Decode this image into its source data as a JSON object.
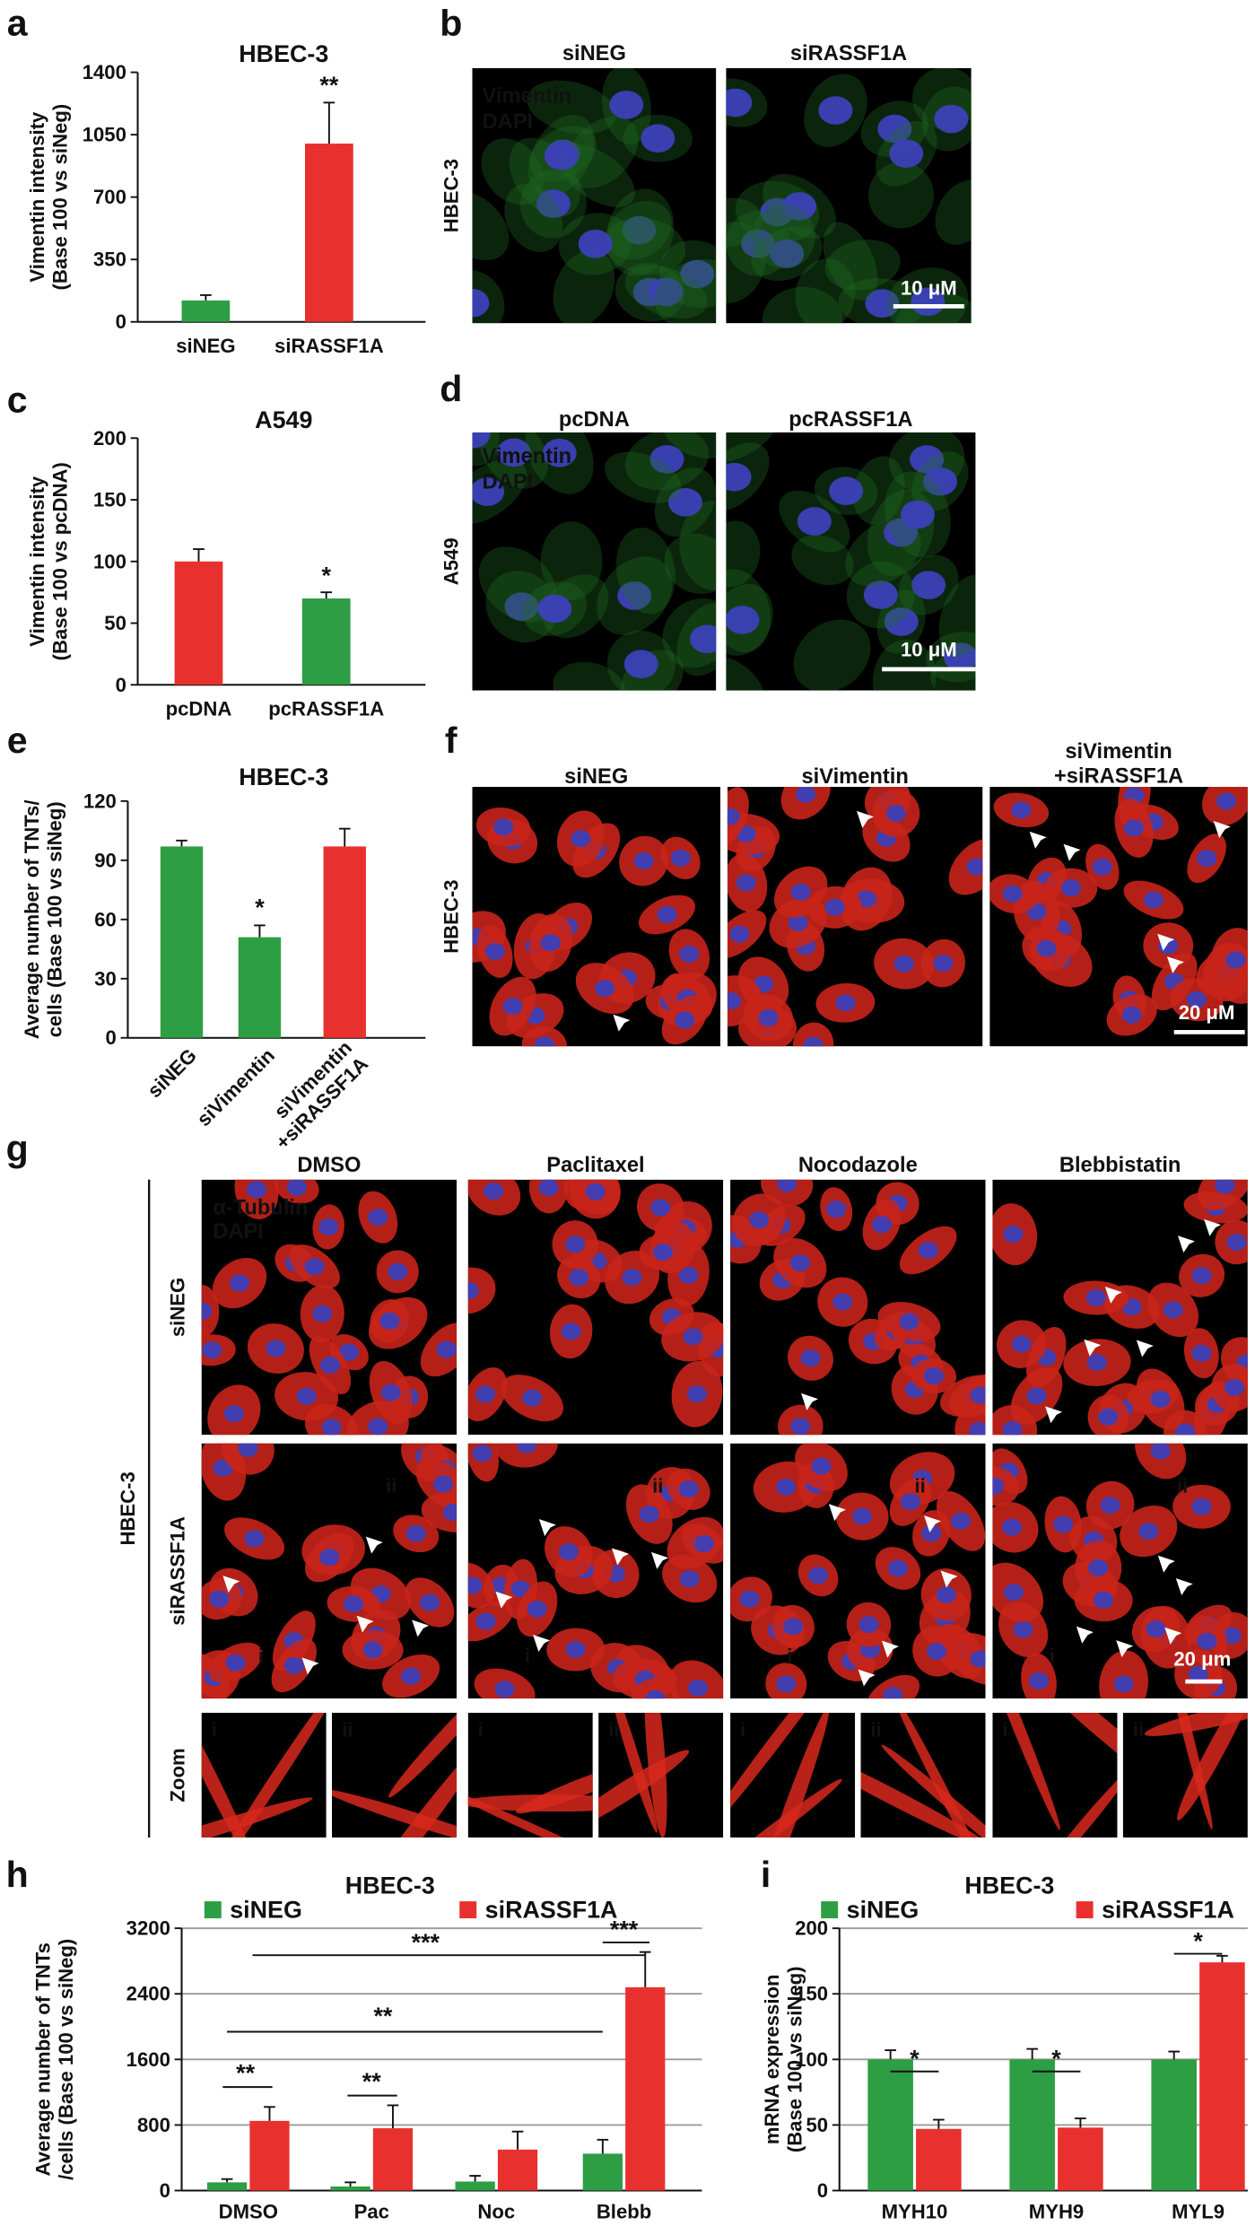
{
  "chart_data": [
    {
      "panel_label": "a",
      "type": "bar",
      "title": "HBEC-3",
      "ylabel": "Vimentin intensity\n(Base 100 vs siNeg)",
      "categories": [
        "siNEG",
        "siRASSF1A"
      ],
      "values": [
        120,
        1000
      ],
      "errors": [
        30,
        230
      ],
      "colors": [
        "#2e9e44",
        "#e8312f"
      ],
      "ylim": [
        0,
        1400
      ],
      "yticks": [
        0,
        350,
        700,
        1050,
        1400
      ],
      "annotations": [
        "**"
      ]
    },
    {
      "panel_label": "c",
      "type": "bar",
      "title": "A549",
      "ylabel": "Vimentin intensity\n(Base 100 vs pcDNA)",
      "categories": [
        "pcDNA",
        "pcRASSF1A"
      ],
      "values": [
        100,
        70
      ],
      "errors": [
        10,
        5
      ],
      "colors": [
        "#e8312f",
        "#2e9e44"
      ],
      "ylim": [
        0,
        200
      ],
      "yticks": [
        0,
        50,
        100,
        150,
        200
      ],
      "annotations": [
        "*"
      ]
    },
    {
      "panel_label": "e",
      "type": "bar",
      "title": "HBEC-3",
      "ylabel": "Average number of TNTs/\ncells (Base 100 vs siNeg)",
      "categories": [
        "siNEG",
        "siVimentin",
        "siVimentin\n+siRASSF1A"
      ],
      "values": [
        97,
        51,
        97
      ],
      "errors": [
        3,
        6,
        9
      ],
      "colors": [
        "#2e9e44",
        "#2e9e44",
        "#e8312f"
      ],
      "ylim": [
        0,
        120
      ],
      "yticks": [
        0,
        30,
        60,
        90,
        120
      ],
      "annotations": [
        "*"
      ]
    },
    {
      "panel_label": "h",
      "type": "bar",
      "title": "HBEC-3",
      "ylabel": "Average number of TNTs\n/cells (Base 100 vs siNeg)",
      "categories": [
        "DMSO",
        "Pac",
        "Noc",
        "Blebb"
      ],
      "series": [
        {
          "name": "siNEG",
          "color": "#2e9e44",
          "values": [
            100,
            50,
            110,
            450
          ],
          "errors": [
            40,
            50,
            70,
            170
          ]
        },
        {
          "name": "siRASSF1A",
          "color": "#e8312f",
          "values": [
            850,
            760,
            500,
            2480
          ],
          "errors": [
            170,
            280,
            220,
            430
          ]
        }
      ],
      "ylim": [
        0,
        3200
      ],
      "yticks": [
        0,
        800,
        1600,
        2400,
        3200
      ],
      "grid": true,
      "annotations": [
        "**",
        "**",
        "***",
        "**",
        "***"
      ]
    },
    {
      "panel_label": "i",
      "type": "bar",
      "title": "HBEC-3",
      "ylabel": "mRNA expression\n(Base 100 vs siNeg)",
      "categories": [
        "MYH10",
        "MYH9",
        "MYL9"
      ],
      "series": [
        {
          "name": "siNEG",
          "color": "#2e9e44",
          "values": [
            100,
            100,
            100
          ],
          "errors": [
            7,
            8,
            6
          ]
        },
        {
          "name": "siRASSF1A",
          "color": "#e8312f",
          "values": [
            47,
            48,
            174
          ],
          "errors": [
            7,
            7,
            5
          ]
        }
      ],
      "ylim": [
        0,
        200
      ],
      "yticks": [
        0,
        50,
        100,
        150,
        200
      ],
      "grid": true,
      "annotations": [
        "*",
        "*",
        "*"
      ]
    }
  ],
  "image_panels": [
    {
      "panel_label": "b",
      "row_label": "HBEC-3",
      "columns": [
        "siNEG",
        "siRASSF1A"
      ],
      "stains": [
        {
          "name": "Vimentin",
          "color": "#3ed23e"
        },
        {
          "name": "DAPI",
          "color": "#3f8f9f"
        }
      ],
      "scale_bar": "10 μM"
    },
    {
      "panel_label": "d",
      "row_label": "A549",
      "columns": [
        "pcDNA",
        "pcRASSF1A"
      ],
      "stains": [
        {
          "name": "Vimentin",
          "color": "#3ed23e"
        },
        {
          "name": "DAPI",
          "color": "#3f8f9f"
        }
      ],
      "scale_bar": "10 μM"
    },
    {
      "panel_label": "f",
      "row_label": "HBEC-3",
      "columns": [
        "siNEG",
        "siVimentin",
        "siVimentin\n+siRASSF1A"
      ],
      "scale_bar": "20 μM"
    },
    {
      "panel_label": "g",
      "group_label": "HBEC-3",
      "columns": [
        "DMSO",
        "Paclitaxel",
        "Nocodazole",
        "Blebbistatin"
      ],
      "rows": [
        "siNEG",
        "siRASSF1A",
        "Zoom"
      ],
      "stains": [
        {
          "name": "α-Tubulin",
          "color": "#e8312f"
        },
        {
          "name": "DAPI",
          "color": "#3f8f9f"
        }
      ],
      "scale_bar": "20 μm",
      "zoom_labels": [
        "i",
        "ii"
      ]
    }
  ]
}
